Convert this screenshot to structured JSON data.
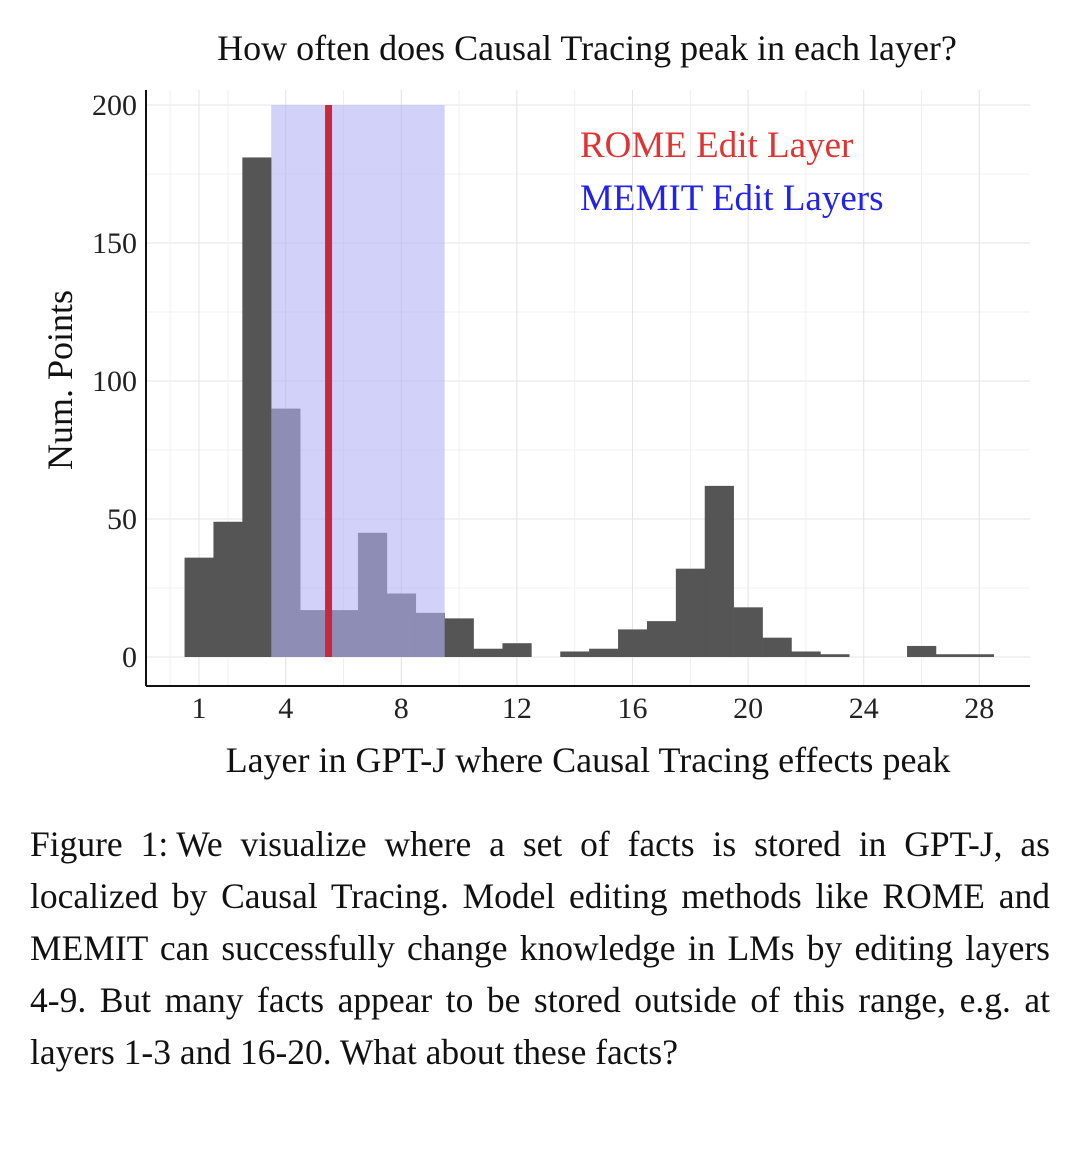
{
  "chart_data": {
    "type": "bar",
    "title": "How often does Causal Tracing peak in each layer?",
    "xlabel": "Layer in GPT-J where Causal Tracing effects peak",
    "ylabel": "Num. Points",
    "xlim": [
      0,
      29.5
    ],
    "ylim": [
      0,
      200
    ],
    "xticks": [
      1,
      4,
      8,
      12,
      16,
      20,
      24,
      28
    ],
    "yticks": [
      0,
      50,
      100,
      150,
      200
    ],
    "grid": true,
    "bins": [
      {
        "x": 1,
        "value": 36
      },
      {
        "x": 2,
        "value": 49
      },
      {
        "x": 3,
        "value": 181
      },
      {
        "x": 4,
        "value": 90
      },
      {
        "x": 5,
        "value": 17
      },
      {
        "x": 6,
        "value": 17
      },
      {
        "x": 7,
        "value": 45
      },
      {
        "x": 8,
        "value": 23
      },
      {
        "x": 9,
        "value": 16
      },
      {
        "x": 10,
        "value": 14
      },
      {
        "x": 11,
        "value": 3
      },
      {
        "x": 12,
        "value": 5
      },
      {
        "x": 14,
        "value": 2
      },
      {
        "x": 15,
        "value": 3
      },
      {
        "x": 16,
        "value": 10
      },
      {
        "x": 17,
        "value": 13
      },
      {
        "x": 18,
        "value": 32
      },
      {
        "x": 19,
        "value": 62
      },
      {
        "x": 20,
        "value": 18
      },
      {
        "x": 21,
        "value": 7
      },
      {
        "x": 22,
        "value": 2
      },
      {
        "x": 23,
        "value": 1
      },
      {
        "x": 26,
        "value": 4
      },
      {
        "x": 27,
        "value": 1
      },
      {
        "x": 28,
        "value": 1
      }
    ],
    "bar_color": "#555555",
    "memit_band": {
      "label": "MEMIT Edit Layers",
      "from": 4,
      "to": 9,
      "color": "#b3b3f5"
    },
    "rome_line": {
      "label": "ROME Edit Layer",
      "at": 6,
      "color": "#c8283c"
    },
    "legend_placement": "top-right",
    "legend": [
      {
        "label": "ROME Edit Layer",
        "color": "#e03434"
      },
      {
        "label": "MEMIT Edit Layers",
        "color": "#2222e8"
      }
    ]
  },
  "caption": {
    "label": "Figure 1:",
    "text": "We visualize where a set of facts is stored in GPT-J, as localized by Causal Tracing. Model editing methods like ROME and MEMIT can successfully change knowledge in LMs by editing layers 4-9. But many facts appear to be stored outside of this range, e.g. at layers 1-3 and 16-20. What about these facts?"
  }
}
